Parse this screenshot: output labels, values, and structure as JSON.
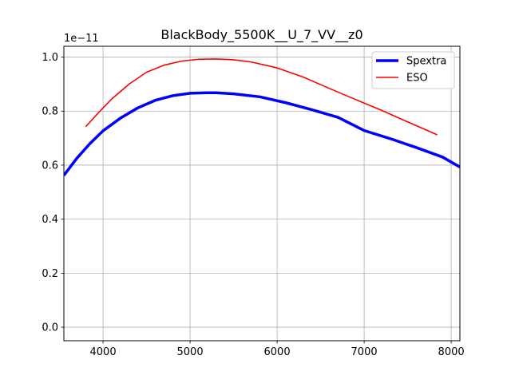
{
  "chart_data": {
    "type": "line",
    "title": "BlackBody_5500K__U_7_VV__z0",
    "xlabel": "",
    "ylabel": "",
    "y_offset_label": "1e−11",
    "xlim": [
      3550,
      8100
    ],
    "ylim": [
      -0.05,
      1.04
    ],
    "x_ticks": [
      4000,
      5000,
      6000,
      7000,
      8000
    ],
    "y_ticks": [
      0.0,
      0.2,
      0.4,
      0.6,
      0.8,
      1.0
    ],
    "y_tick_labels": [
      "0.0",
      "0.2",
      "0.4",
      "0.6",
      "0.8",
      "1.0"
    ],
    "grid": true,
    "legend_position": "top-right",
    "series": [
      {
        "name": "Spextra",
        "color": "#0000ff",
        "x": [
          3550,
          3700,
          3850,
          4000,
          4200,
          4400,
          4600,
          4800,
          5000,
          5200,
          5300,
          5500,
          5800,
          6100,
          6400,
          6700,
          7000,
          7300,
          7600,
          7900,
          8100
        ],
        "y": [
          0.562,
          0.626,
          0.68,
          0.727,
          0.774,
          0.812,
          0.84,
          0.857,
          0.866,
          0.868,
          0.868,
          0.864,
          0.853,
          0.831,
          0.805,
          0.777,
          0.728,
          0.698,
          0.665,
          0.63,
          0.593
        ]
      },
      {
        "name": "ESO",
        "color": "#ff0000",
        "x": [
          3800,
          3950,
          4100,
          4300,
          4500,
          4700,
          4900,
          5100,
          5300,
          5500,
          5700,
          6000,
          6300,
          6600,
          6900,
          7200,
          7500,
          7840
        ],
        "y": [
          0.742,
          0.795,
          0.845,
          0.9,
          0.944,
          0.97,
          0.985,
          0.992,
          0.993,
          0.99,
          0.982,
          0.96,
          0.926,
          0.884,
          0.843,
          0.803,
          0.76,
          0.712
        ]
      }
    ]
  }
}
